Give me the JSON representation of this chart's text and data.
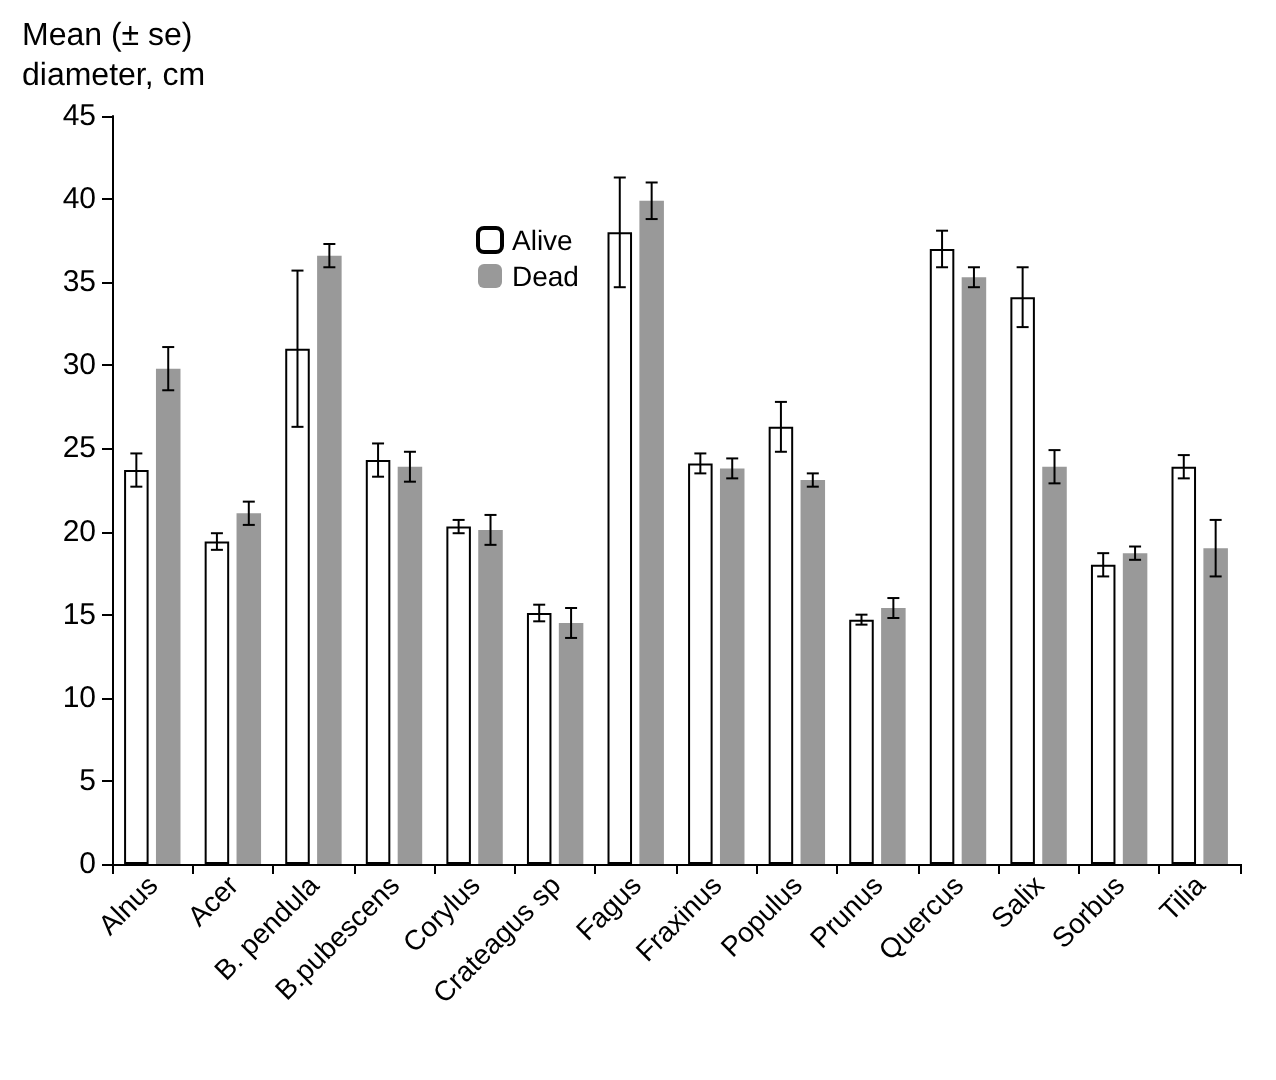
{
  "chart_data": {
    "type": "bar",
    "ylabel": "Mean (± se)\ndiameter, cm",
    "categories": [
      "Alnus",
      "Acer",
      "B. pendula",
      "B.pubescens",
      "Corylus",
      "Crateagus sp",
      "Fagus",
      "Fraxinus",
      "Populus",
      "Prunus",
      "Quercus",
      "Salix",
      "Sorbus",
      "Tilia"
    ],
    "series": [
      {
        "name": "Alive",
        "color": "#ffffff",
        "values": [
          23.7,
          19.4,
          31,
          24.3,
          20.3,
          15.1,
          38,
          24.1,
          26.3,
          14.7,
          37,
          34.1,
          18,
          23.9
        ],
        "errors": [
          1,
          0.5,
          4.7,
          1,
          0.4,
          0.5,
          3.3,
          0.6,
          1.5,
          0.3,
          1.1,
          1.8,
          0.7,
          0.7
        ]
      },
      {
        "name": "Dead",
        "color": "#999999",
        "values": [
          29.8,
          21.1,
          36.6,
          23.9,
          20.1,
          14.5,
          39.9,
          23.8,
          23.1,
          15.4,
          35.3,
          23.9,
          18.7,
          19
        ],
        "errors": [
          1.3,
          0.7,
          0.7,
          0.9,
          0.9,
          0.9,
          1.1,
          0.6,
          0.4,
          0.6,
          0.6,
          1,
          0.4,
          1.7
        ]
      }
    ],
    "ylim": [
      0,
      45
    ],
    "yticks": [
      0,
      5,
      10,
      15,
      20,
      25,
      30,
      35,
      40,
      45
    ],
    "grid": false,
    "legend": "top left"
  }
}
